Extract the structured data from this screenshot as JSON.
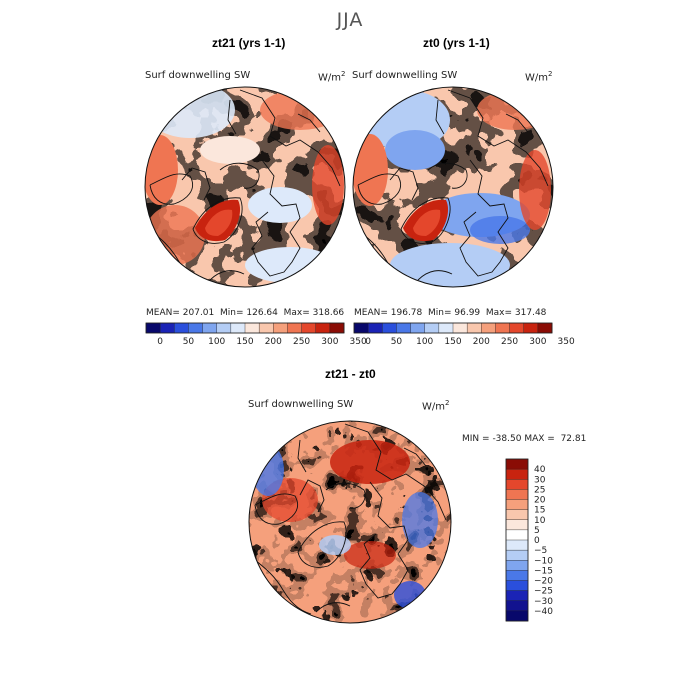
{
  "title": "JJA",
  "panels": [
    {
      "title": "zt21 (yrs 1-1)",
      "variable": "Surf downwelling SW",
      "units": "W/m",
      "units_exp": "2",
      "stats": {
        "mean_label": "MEAN=",
        "mean": "207.01",
        "min_label": "Min=",
        "min": "126.64",
        "max_label": "Max=",
        "max": "318.66"
      }
    },
    {
      "title": "zt0 (yrs 1-1)",
      "variable": "Surf downwelling SW",
      "units": "W/m",
      "units_exp": "2",
      "stats": {
        "mean_label": "MEAN=",
        "mean": "196.78",
        "min_label": "Min=",
        "min": "96.99",
        "max_label": "Max=",
        "max": "317.48"
      }
    },
    {
      "title": "zt21 - zt0",
      "variable": "Surf downwelling SW",
      "units": "W/m",
      "units_exp": "2",
      "stats": {
        "min_label": "MIN =",
        "min": "-38.50",
        "max_label": "MAX =",
        "max": "72.81"
      }
    }
  ],
  "chart_data": [
    {
      "type": "heatmap",
      "projection": "north polar stereographic",
      "title": "zt21 (yrs 1-1)",
      "variable": "Surf downwelling SW",
      "units": "W/m^2",
      "mean": 207.01,
      "min": 126.64,
      "max": 318.66,
      "colorbar_ticks": [
        "0",
        "50",
        "100",
        "150",
        "200",
        "250",
        "300",
        "350"
      ],
      "colorbar_colors": [
        "#08086b",
        "#1a23b5",
        "#2a4fdc",
        "#4a78e8",
        "#7fa5ef",
        "#b4cdf5",
        "#dde9fa",
        "#fbe7dc",
        "#f9c7ad",
        "#f5a07c",
        "#ef7552",
        "#e4472c",
        "#c8230f",
        "#8a0c05"
      ]
    },
    {
      "type": "heatmap",
      "projection": "north polar stereographic",
      "title": "zt0 (yrs 1-1)",
      "variable": "Surf downwelling SW",
      "units": "W/m^2",
      "mean": 196.78,
      "min": 96.99,
      "max": 317.48,
      "colorbar_ticks": [
        "0",
        "50",
        "100",
        "150",
        "200",
        "250",
        "300",
        "350"
      ],
      "colorbar_colors": [
        "#08086b",
        "#1a23b5",
        "#2a4fdc",
        "#4a78e8",
        "#7fa5ef",
        "#b4cdf5",
        "#dde9fa",
        "#fbe7dc",
        "#f9c7ad",
        "#f5a07c",
        "#ef7552",
        "#e4472c",
        "#c8230f",
        "#8a0c05"
      ]
    },
    {
      "type": "heatmap",
      "projection": "north polar stereographic",
      "title": "zt21 - zt0",
      "variable": "Surf downwelling SW",
      "units": "W/m^2",
      "min": -38.5,
      "max": 72.81,
      "colorbar_ticks": [
        "40",
        "30",
        "25",
        "20",
        "15",
        "10",
        "5",
        "0",
        "-5",
        "-10",
        "-15",
        "-20",
        "-25",
        "-30",
        "-40"
      ],
      "colorbar_colors": [
        "#8a0c05",
        "#c8230f",
        "#e4472c",
        "#ef7552",
        "#f5a07c",
        "#f9c7ad",
        "#fbe7dc",
        "#ffffff",
        "#dde9fa",
        "#b4cdf5",
        "#7fa5ef",
        "#4a78e8",
        "#2a4fdc",
        "#1a23b5",
        "#12128f",
        "#08086b"
      ]
    }
  ]
}
